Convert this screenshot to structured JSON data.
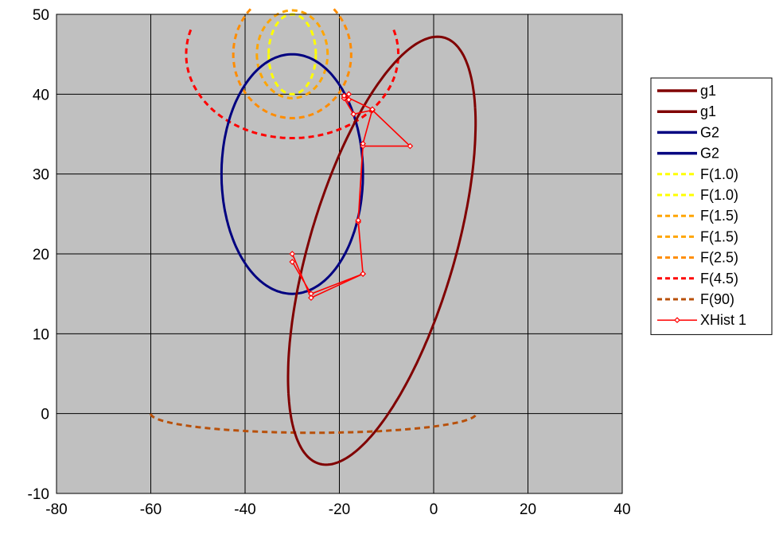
{
  "chart_data": {
    "type": "line",
    "xlim": [
      -80,
      40
    ],
    "ylim": [
      -10,
      50
    ],
    "x_ticks": [
      -80,
      -60,
      -40,
      -20,
      0,
      20,
      40
    ],
    "y_ticks": [
      -10,
      0,
      10,
      20,
      30,
      40,
      50
    ],
    "grid": true,
    "legend_position": "right",
    "plot_background": "#c0c0c0",
    "series": [
      {
        "name": "g1",
        "color": "#800000",
        "style": "solid",
        "shape": "ellipse",
        "center": [
          -11,
          20.4
        ],
        "semi_major": 30.2,
        "semi_minor": 14.2,
        "rotation_deg": 58.5,
        "t_range": [
          -32,
          148
        ]
      },
      {
        "name": "g1",
        "color": "#800000",
        "style": "solid",
        "shape": "ellipse",
        "center": [
          -11,
          20.4
        ],
        "semi_major": 30.2,
        "semi_minor": 14.2,
        "rotation_deg": 58.5,
        "t_range": [
          148,
          328
        ]
      },
      {
        "name": "G2",
        "color": "#000080",
        "style": "solid",
        "shape": "ellipse",
        "center": [
          -30,
          30
        ],
        "rx": 15,
        "ry": 15,
        "t_range": [
          0,
          180
        ]
      },
      {
        "name": "G2",
        "color": "#000080",
        "style": "solid",
        "shape": "ellipse",
        "center": [
          -30,
          30
        ],
        "rx": 15,
        "ry": 15,
        "t_range": [
          180,
          360
        ]
      },
      {
        "name": "F(1.0)",
        "color": "#ffff00",
        "style": "dashed",
        "shape": "ellipse",
        "center": [
          -30,
          45
        ],
        "rx": 5,
        "ry": 5,
        "t_range": [
          0,
          180
        ]
      },
      {
        "name": "F(1.0)",
        "color": "#ffff00",
        "style": "dashed",
        "shape": "ellipse",
        "center": [
          -30,
          45
        ],
        "rx": 5,
        "ry": 5,
        "t_range": [
          180,
          360
        ]
      },
      {
        "name": "F(1.5)",
        "color": "#ffa500",
        "style": "dashed",
        "shape": "ellipse",
        "center": [
          -30,
          45
        ],
        "rx": 7.5,
        "ry": 5.5,
        "t_range": [
          0,
          180
        ]
      },
      {
        "name": "F(1.5)",
        "color": "#ffa500",
        "style": "dashed",
        "shape": "ellipse",
        "center": [
          -30,
          45
        ],
        "rx": 7.5,
        "ry": 5.5,
        "t_range": [
          180,
          360
        ]
      },
      {
        "name": "F(2.5)",
        "color": "#ff8c00",
        "style": "dashed",
        "shape": "ellipse",
        "center": [
          -30,
          45
        ],
        "rx": 12.5,
        "ry": 8,
        "t_range": [
          -225,
          45
        ]
      },
      {
        "name": "F(4.5)",
        "color": "#ff0000",
        "style": "dashed",
        "shape": "ellipse",
        "center": [
          -30,
          45
        ],
        "rx": 22.5,
        "ry": 10.5,
        "t_range": [
          -197,
          17
        ]
      },
      {
        "name": "F(90)",
        "color": "#b8500a",
        "style": "dashed",
        "shape": "ellipse",
        "center": [
          -25.5,
          0
        ],
        "rx": 34.5,
        "ry": 2.4,
        "t_range": [
          -180,
          0
        ]
      },
      {
        "name": "XHist 1",
        "color": "#ff0000",
        "style": "solid",
        "marker": "diamond",
        "x": [
          -30,
          -26,
          -15,
          -16,
          -15,
          -5,
          -13,
          -17,
          -19,
          -18,
          -18,
          -19,
          -13,
          -15,
          -16,
          -15,
          -26,
          -30
        ],
        "y": [
          19,
          15,
          17.5,
          24,
          33.5,
          33.5,
          38,
          37.5,
          39.5,
          40,
          39.3,
          39.8,
          38.1,
          33.8,
          24.2,
          17.5,
          14.5,
          20
        ]
      }
    ]
  }
}
